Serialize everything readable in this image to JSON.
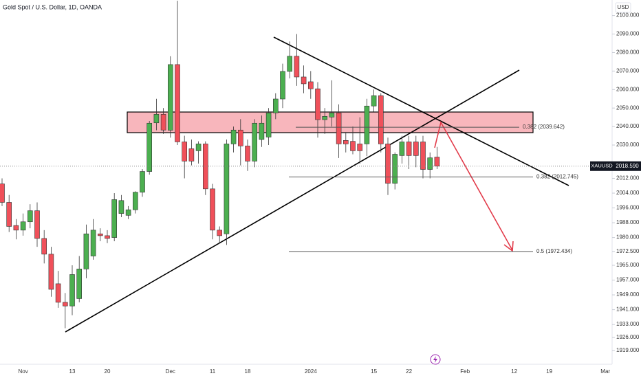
{
  "chart_data": {
    "type": "candlestick",
    "title": "Gold Spot / U.S. Dollar, 1D, OANDA",
    "currency": "USD",
    "symbol": "XAUUSD",
    "last_price": {
      "value": 2018.59,
      "label": "2018.590"
    },
    "up_color": "#4caf50",
    "down_color": "#f0505a",
    "grid": false,
    "categories": [
      null,
      null,
      null,
      "Nov",
      null,
      null,
      null,
      null,
      null,
      null,
      "13",
      null,
      null,
      null,
      null,
      "20",
      null,
      null,
      null,
      null,
      null,
      null,
      null,
      null,
      "Dec",
      null,
      null,
      null,
      null,
      null,
      "11",
      null,
      null,
      null,
      null,
      "18",
      null,
      null,
      null,
      null,
      null,
      null,
      null,
      null,
      "2024",
      null,
      null,
      null,
      null,
      null,
      null,
      null,
      null,
      "15",
      null,
      null,
      null,
      null,
      "22",
      null,
      null,
      null,
      null,
      null,
      null,
      null,
      "Feb",
      null,
      null,
      null,
      null,
      null,
      null,
      "12",
      null,
      null,
      null,
      null,
      "19",
      null,
      null,
      null,
      null,
      null,
      null,
      null,
      "Mar"
    ],
    "open": [
      2009,
      1999,
      1986.5,
      1984,
      1988.5,
      1994.5,
      1979.5,
      1971,
      1955,
      1945,
      1943,
      1947,
      1963,
      1970,
      1982,
      1981,
      1980,
      1993,
      1992,
      1995,
      2004.5,
      2015.7,
      2042,
      2046.6,
      2038,
      2073.5,
      2031.7,
      2028,
      2026.9,
      2030.6,
      2006.3,
      1984,
      1982,
      2030.6,
      2038.1,
      2029.5,
      2021.3,
      2033,
      2034.3,
      2047.4,
      2054.9,
      2069.8,
      2078,
      2066.8,
      2064.2,
      2060.4,
      2043.7,
      2045.1,
      2047.4,
      2032.5,
      2032,
      2030.6,
      2030.6,
      2051.1,
      2056.7,
      2030.6,
      2009.3,
      2024.3,
      2031.7,
      2031.7,
      2031.7,
      2016.8,
      2023.5,
      null,
      null,
      null,
      null,
      null,
      null,
      null,
      null,
      null,
      null,
      null,
      null,
      null,
      null,
      null,
      null,
      null,
      null,
      null,
      null,
      null,
      null,
      null,
      null
    ],
    "high": [
      2012,
      2003,
      1990,
      1993,
      1998,
      1999,
      1984,
      1975,
      1962,
      1950,
      1965,
      1970,
      1987,
      1990,
      1985,
      1984,
      2004,
      2003,
      1997,
      2005,
      2017,
      2043,
      2055,
      2050,
      2078,
      2108,
      2035,
      2033,
      2032,
      2032,
      2009,
      1986,
      2033,
      2040,
      2044,
      2033,
      2044,
      2046,
      2050,
      2058,
      2074,
      2086,
      2090,
      2073,
      2070,
      2064,
      2050,
      2065,
      2052,
      2037,
      2040,
      2045,
      2055,
      2060,
      2058,
      2034,
      2026,
      2035,
      2035,
      2035,
      2035,
      2026,
      2029,
      null,
      null,
      null,
      null,
      null,
      null,
      null,
      null,
      null,
      null,
      null,
      null,
      null,
      null,
      null,
      null,
      null,
      null,
      null,
      null,
      null,
      null,
      null,
      null
    ],
    "low": [
      1997,
      1983,
      1979,
      1981,
      1985,
      1975,
      1966,
      1948,
      1942,
      1931,
      1938,
      1945,
      1958,
      1968,
      1978,
      1977,
      1978,
      1991,
      1990,
      1993,
      2002,
      2014,
      2038,
      2036,
      2034,
      2030,
      2012,
      2019,
      2020,
      2003,
      1979,
      1977,
      1976,
      2026,
      2019,
      2016,
      2018,
      2029,
      2030,
      2044,
      2050,
      2066,
      2062,
      2058,
      2055,
      2034,
      2036,
      2040,
      2023,
      2026,
      2025,
      2020,
      2024,
      2048,
      2026,
      2003,
      2006,
      2020,
      2017,
      2018,
      2012,
      2012,
      2017,
      null,
      null,
      null,
      null,
      null,
      null,
      null,
      null,
      null,
      null,
      null,
      null,
      null,
      null,
      null,
      null,
      null,
      null,
      null,
      null,
      null,
      null,
      null,
      null
    ],
    "close": [
      1999,
      1986,
      1984,
      1988.5,
      1994.5,
      1979.5,
      1971,
      1952,
      1945,
      1943,
      1960,
      1963,
      1982,
      1984,
      1981,
      1979.5,
      2000.5,
      2000,
      1995,
      2004.5,
      2015.7,
      2041.8,
      2046.6,
      2038.1,
      2073.5,
      2031.7,
      2021.3,
      2021.3,
      2030.6,
      2006.3,
      1984,
      1981,
      2030.6,
      2038.1,
      2029.5,
      2021.3,
      2041.8,
      2041.8,
      2047.4,
      2054.9,
      2069.8,
      2078,
      2066.8,
      2063.1,
      2060.4,
      2043.7,
      2045.5,
      2047.4,
      2030.6,
      2030.6,
      2026.9,
      2026.9,
      2051.1,
      2056.7,
      2030.6,
      2009.3,
      2025,
      2031.7,
      2024.3,
      2024.3,
      2016.8,
      2023.1,
      2018.59,
      null,
      null,
      null,
      null,
      null,
      null,
      null,
      null,
      null,
      null,
      null,
      null,
      null,
      null,
      null,
      null,
      null,
      null,
      null,
      null,
      null,
      null,
      null,
      null
    ],
    "ylim": [
      1911.5,
      2108.4
    ],
    "yticks": [
      {
        "value": 2100,
        "label": "2100.000"
      },
      {
        "value": 2090,
        "label": "2090.000"
      },
      {
        "value": 2080,
        "label": "2080.000"
      },
      {
        "value": 2070,
        "label": "2070.000"
      },
      {
        "value": 2060,
        "label": "2060.000"
      },
      {
        "value": 2050,
        "label": "2050.000"
      },
      {
        "value": 2040,
        "label": "2040.000"
      },
      {
        "value": 2030,
        "label": "2030.000"
      },
      {
        "value": 2012,
        "label": "2012.000"
      },
      {
        "value": 2004,
        "label": "2004.000"
      },
      {
        "value": 1996,
        "label": "1996.000"
      },
      {
        "value": 1988,
        "label": "1988.000"
      },
      {
        "value": 1980,
        "label": "1980.000"
      },
      {
        "value": 1972.5,
        "label": "1972.500"
      },
      {
        "value": 1965,
        "label": "1965.000"
      },
      {
        "value": 1957,
        "label": "1957.000"
      },
      {
        "value": 1949,
        "label": "1949.000"
      },
      {
        "value": 1941,
        "label": "1941.000"
      },
      {
        "value": 1933,
        "label": "1933.000"
      },
      {
        "value": 1926,
        "label": "1926.000"
      },
      {
        "value": 1919,
        "label": "1919.000"
      }
    ],
    "fib_levels": [
      {
        "value": 2039.642,
        "label": "0.382 (2039.642)"
      },
      {
        "value": 2012.745,
        "label": "0.382 (2012.745)"
      },
      {
        "value": 1972.434,
        "label": "0.5 (1972.434)"
      }
    ]
  }
}
